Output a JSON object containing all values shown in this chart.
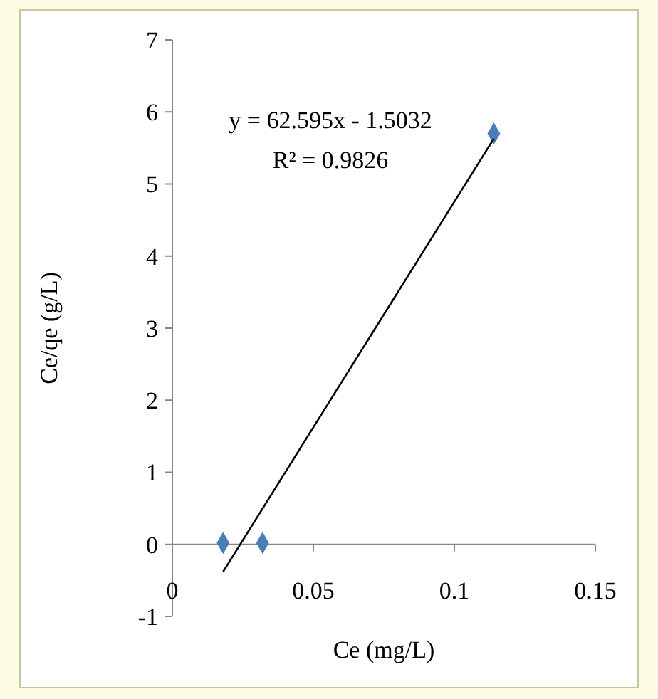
{
  "chart_data": {
    "type": "scatter",
    "xlabel": "Ce (mg/L)",
    "ylabel": "Ce/qe (g/L)",
    "xlim": [
      0,
      0.15
    ],
    "ylim": [
      -1,
      7
    ],
    "xticks": [
      0,
      0.05,
      0.1,
      0.15
    ],
    "yticks": [
      -1,
      0,
      1,
      2,
      3,
      4,
      5,
      6,
      7
    ],
    "marker": "diamond",
    "grid": false,
    "series": [
      {
        "color": "#4a7ebb",
        "x": [
          0.018,
          0.032,
          0.114
        ],
        "values": [
          0.02,
          0.02,
          5.7
        ]
      },
      {
        "type": "line",
        "color": "#000000",
        "marker": "none",
        "x": [
          0.018,
          0.114
        ],
        "values": [
          -0.38,
          5.63
        ]
      }
    ],
    "annotations": [
      "y = 62.595x - 1.5032",
      "R² = 0.9826"
    ]
  }
}
